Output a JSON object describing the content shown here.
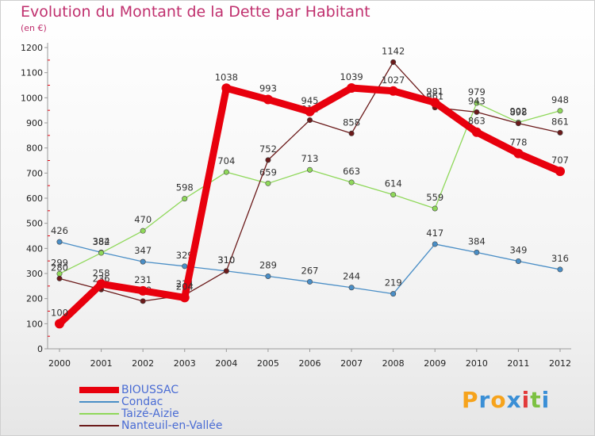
{
  "chart_data": {
    "type": "line",
    "title": "Evolution du Montant de la Dette par Habitant",
    "subtitle": "(en €)",
    "x": [
      "2000",
      "2001",
      "2002",
      "2003",
      "2004",
      "2005",
      "2006",
      "2007",
      "2008",
      "2009",
      "2010",
      "2011",
      "2012"
    ],
    "ylim": [
      0,
      1200
    ],
    "yticks": [
      0,
      100,
      200,
      300,
      400,
      500,
      600,
      700,
      800,
      900,
      1000,
      1100,
      1200
    ],
    "grid": false,
    "legend_position": "bottom-left",
    "series": [
      {
        "name": "BIOUSSAC",
        "color": "#e8000d",
        "values": [
          100,
          258,
          231,
          204,
          1038,
          993,
          945,
          1039,
          1027,
          981,
          863,
          778,
          707
        ]
      },
      {
        "name": "Condac",
        "color": "#4a8ec6",
        "values": [
          426,
          384,
          347,
          329,
          310,
          289,
          267,
          244,
          219,
          417,
          384,
          349,
          316
        ]
      },
      {
        "name": "Taizé-Aizie",
        "color": "#8fd85a",
        "values": [
          299,
          382,
          470,
          598,
          704,
          659,
          713,
          663,
          614,
          559,
          979,
          902,
          948
        ]
      },
      {
        "name": "Nanteuil-en-Vallée",
        "color": "#6b1a1a",
        "values": [
          280,
          236,
          190,
          214,
          310,
          752,
          911,
          858,
          1142,
          961,
          943,
          898,
          861
        ]
      }
    ]
  },
  "brand": {
    "letters": [
      "P",
      "r",
      "o",
      "x",
      "i",
      "t",
      "i"
    ],
    "colors": [
      "#f6a31c",
      "#3a8fd6",
      "#f6a31c",
      "#3a8fd6",
      "#e23a3a",
      "#7cc142",
      "#3a8fd6"
    ]
  }
}
